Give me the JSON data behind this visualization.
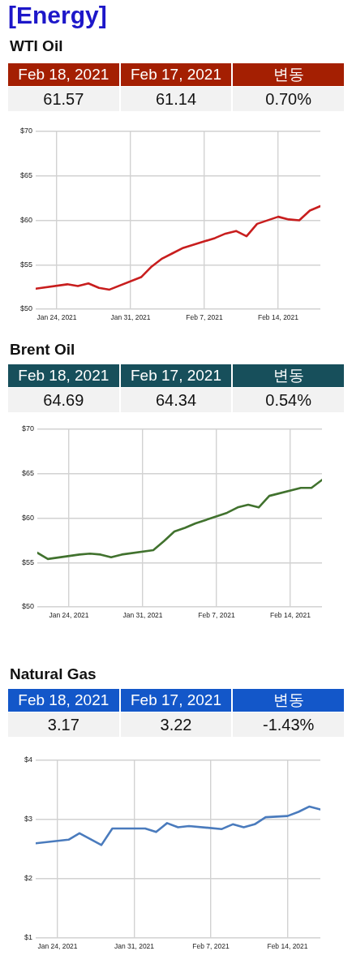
{
  "chart_data": [
    {
      "type": "other",
      "title": "[Energy]"
    },
    {
      "type": "line",
      "title": "WTI Oil",
      "annotations": [
        "Feb 18, 2021",
        "Feb 17, 2021",
        "변동",
        "61.57",
        "61.14",
        "0.70%"
      ],
      "x": [
        "2021-01-22",
        "2021-01-25",
        "2021-01-26",
        "2021-01-27",
        "2021-01-28",
        "2021-01-29",
        "2021-02-01",
        "2021-02-02",
        "2021-02-03",
        "2021-02-04",
        "2021-02-05",
        "2021-02-08",
        "2021-02-09",
        "2021-02-10",
        "2021-02-11",
        "2021-02-12",
        "2021-02-14",
        "2021-02-15",
        "2021-02-16",
        "2021-02-17",
        "2021-02-18"
      ],
      "series": [
        {
          "color": "#c81e1e",
          "values": [
            52.3,
            52.8,
            52.6,
            52.9,
            52.4,
            52.2,
            53.6,
            54.8,
            55.7,
            56.3,
            56.9,
            58.0,
            58.5,
            58.8,
            58.2,
            59.6,
            60.4,
            60.1,
            60.0,
            61.1,
            61.6
          ]
        }
      ],
      "xlim": [
        "2021-01-22",
        "2021-02-18"
      ],
      "xticks": [
        {
          "value": "2021-01-24",
          "label": "Jan 24, 2021"
        },
        {
          "value": "2021-01-31",
          "label": "Jan 31, 2021"
        },
        {
          "value": "2021-02-07",
          "label": "Feb 7, 2021"
        },
        {
          "value": "2021-02-14",
          "label": "Feb 14, 2021"
        }
      ],
      "ylim": [
        50,
        70
      ],
      "yticks": [
        {
          "value": 50,
          "label": "$50"
        },
        {
          "value": 55,
          "label": "$55"
        },
        {
          "value": 60,
          "label": "$60"
        },
        {
          "value": 65,
          "label": "$65"
        },
        {
          "value": 70,
          "label": "$70"
        }
      ],
      "grid": true,
      "marker": "none"
    },
    {
      "type": "line",
      "title": "Brent Oil",
      "annotations": [
        "Feb 18, 2021",
        "Feb 17, 2021",
        "변동",
        "64.69",
        "64.34",
        "0.54%"
      ],
      "x": [
        "2021-01-21",
        "2021-01-22",
        "2021-01-25",
        "2021-01-26",
        "2021-01-27",
        "2021-01-28",
        "2021-01-29",
        "2021-02-01",
        "2021-02-02",
        "2021-02-03",
        "2021-02-04",
        "2021-02-05",
        "2021-02-08",
        "2021-02-09",
        "2021-02-10",
        "2021-02-11",
        "2021-02-12",
        "2021-02-15",
        "2021-02-16",
        "2021-02-17"
      ],
      "series": [
        {
          "color": "#41722e",
          "values": [
            56.1,
            55.4,
            55.9,
            56.0,
            55.9,
            55.6,
            55.9,
            56.4,
            57.4,
            58.5,
            58.9,
            59.4,
            60.6,
            61.2,
            61.5,
            61.2,
            62.5,
            63.4,
            63.4,
            64.3
          ]
        }
      ],
      "xlim": [
        "2021-01-21",
        "2021-02-17"
      ],
      "xticks": [
        {
          "value": "2021-01-24",
          "label": "Jan 24, 2021"
        },
        {
          "value": "2021-01-31",
          "label": "Jan 31, 2021"
        },
        {
          "value": "2021-02-07",
          "label": "Feb 7, 2021"
        },
        {
          "value": "2021-02-14",
          "label": "Feb 14, 2021"
        }
      ],
      "ylim": [
        50,
        70
      ],
      "yticks": [
        {
          "value": 50,
          "label": "$50"
        },
        {
          "value": 55,
          "label": "$55"
        },
        {
          "value": 60,
          "label": "$60"
        },
        {
          "value": 65,
          "label": "$65"
        },
        {
          "value": 70,
          "label": "$70"
        }
      ],
      "grid": true,
      "marker": "none"
    },
    {
      "type": "line",
      "title": "Natural Gas",
      "annotations": [
        "Feb 18, 2021",
        "Feb 17, 2021",
        "변동",
        "3.17",
        "3.22",
        "-1.43%"
      ],
      "x": [
        "2021-01-22",
        "2021-01-25",
        "2021-01-26",
        "2021-01-27",
        "2021-01-28",
        "2021-01-29",
        "2021-02-01",
        "2021-02-02",
        "2021-02-03",
        "2021-02-04",
        "2021-02-05",
        "2021-02-08",
        "2021-02-09",
        "2021-02-10",
        "2021-02-11",
        "2021-02-12",
        "2021-02-14",
        "2021-02-15",
        "2021-02-16",
        "2021-02-17"
      ],
      "series": [
        {
          "color": "#4a7bbd",
          "values": [
            2.6,
            2.66,
            2.77,
            2.67,
            2.57,
            2.85,
            2.85,
            2.79,
            2.94,
            2.87,
            2.89,
            2.84,
            2.92,
            2.87,
            2.92,
            3.04,
            3.06,
            3.13,
            3.22,
            3.17
          ]
        }
      ],
      "xlim": [
        "2021-01-22",
        "2021-02-17"
      ],
      "xticks": [
        {
          "value": "2021-01-24",
          "label": "Jan 24, 2021"
        },
        {
          "value": "2021-01-31",
          "label": "Jan 31, 2021"
        },
        {
          "value": "2021-02-07",
          "label": "Feb 7, 2021"
        },
        {
          "value": "2021-02-14",
          "label": "Feb 14, 2021"
        }
      ],
      "ylim": [
        1,
        4
      ],
      "yticks": [
        {
          "value": 1,
          "label": "$1"
        },
        {
          "value": 2,
          "label": "$2"
        },
        {
          "value": 3,
          "label": "$3"
        },
        {
          "value": 4,
          "label": "$4"
        }
      ],
      "grid": true,
      "marker": "none"
    }
  ]
}
